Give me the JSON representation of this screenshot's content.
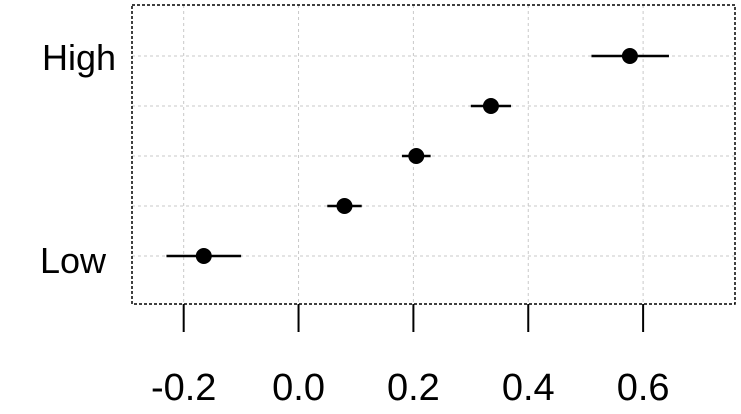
{
  "chart_data": {
    "type": "scatter",
    "title": "",
    "xlabel": "",
    "ylabel": "",
    "xlim": [
      -0.29,
      0.76
    ],
    "x_ticks": [
      -0.2,
      0.0,
      0.2,
      0.4,
      0.6
    ],
    "x_tick_labels": [
      "-0.2",
      "0.0",
      "0.2",
      "0.4",
      "0.6"
    ],
    "y_tick_labels": [
      "High",
      "Low"
    ],
    "grid": true,
    "points": [
      {
        "level": 1,
        "x": -0.165,
        "lower": -0.23,
        "upper": -0.1
      },
      {
        "level": 2,
        "x": 0.08,
        "lower": 0.05,
        "upper": 0.11
      },
      {
        "level": 3,
        "x": 0.205,
        "lower": 0.18,
        "upper": 0.23
      },
      {
        "level": 4,
        "x": 0.335,
        "lower": 0.3,
        "upper": 0.37
      },
      {
        "level": 5,
        "x": 0.577,
        "lower": 0.51,
        "upper": 0.645
      }
    ],
    "colors": {
      "marker": "#000000",
      "grid": "#c8c8c8",
      "frame": "#000000"
    }
  }
}
